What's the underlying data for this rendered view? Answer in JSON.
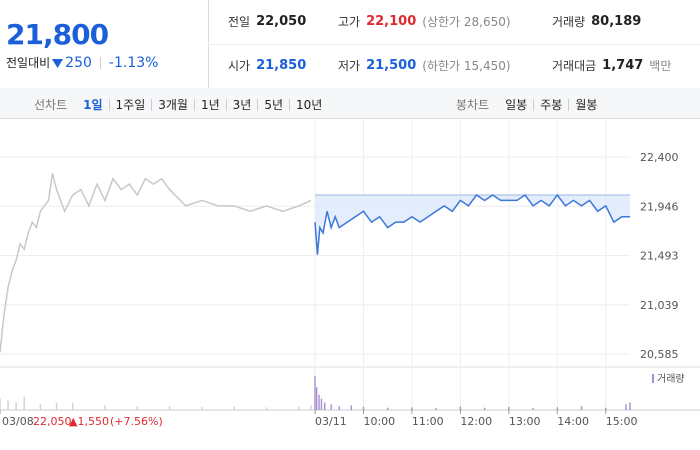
{
  "header": {
    "price": "21,800",
    "change_label": "전일대비",
    "change": "250",
    "change_pct": "-1.13%"
  },
  "stats": [
    {
      "label": "전일",
      "value": "22,050",
      "color": "#222222"
    },
    {
      "label": "고가",
      "value": "22,100",
      "extra": "(상한가 28,650)",
      "color": "#e0282f"
    },
    {
      "label": "거래량",
      "value": "80,189",
      "color": "#222222"
    },
    {
      "label": "시가",
      "value": "21,850",
      "color": "#1b5fd9"
    },
    {
      "label": "저가",
      "value": "21,500",
      "extra": "(하한가 15,450)",
      "color": "#1b5fd9"
    },
    {
      "label": "거래대금",
      "value": "1,747",
      "extra": "백만",
      "color": "#222222"
    }
  ],
  "tabs": {
    "line_label": "선차트",
    "periods": [
      "1일",
      "1주일",
      "3개월",
      "1년",
      "3년",
      "5년",
      "10년"
    ],
    "active": "1일",
    "candle_label": "봉차트",
    "candles": [
      "일봉",
      "주봉",
      "월봉"
    ]
  },
  "chart_data": {
    "type": "line",
    "xlim": [
      -390,
      390
    ],
    "ylim": [
      20484,
      22741
    ],
    "v2lim": [
      0,
      100
    ],
    "xticks": [
      {
        "value": -390,
        "label": "03/08"
      },
      {
        "value": 0,
        "label": "03/11"
      },
      {
        "value": 60,
        "label": "10:00"
      },
      {
        "value": 120,
        "label": "11:00"
      },
      {
        "value": 180,
        "label": "12:00"
      },
      {
        "value": 240,
        "label": "13:00"
      },
      {
        "value": 300,
        "label": "14:00"
      },
      {
        "value": 360,
        "label": "15:00"
      }
    ],
    "yticks": [
      {
        "value": 22400,
        "label": "22,400"
      },
      {
        "value": 21946,
        "label": "21,946"
      },
      {
        "value": 21493,
        "label": "21,493"
      },
      {
        "value": 21039,
        "label": "21,039"
      },
      {
        "value": 20585,
        "label": "20,585"
      }
    ],
    "grid": true,
    "base_value": 22050,
    "series": [
      {
        "color": "#c8c8c8",
        "x": [
          -390,
          -385,
          -380,
          -375,
          -370,
          -365,
          -360,
          -355,
          -350,
          -345,
          -340,
          -335,
          -330,
          -325,
          -320,
          -310,
          -300,
          -290,
          -280,
          -270,
          -260,
          -250,
          -240,
          -230,
          -220,
          -210,
          -200,
          -190,
          -180,
          -160,
          -140,
          -120,
          -100,
          -80,
          -60,
          -40,
          -20,
          -5
        ],
        "values": [
          20600,
          20950,
          21200,
          21350,
          21450,
          21600,
          21550,
          21700,
          21800,
          21750,
          21900,
          21950,
          22000,
          22250,
          22100,
          21900,
          22050,
          22100,
          21950,
          22150,
          22000,
          22200,
          22100,
          22150,
          22050,
          22200,
          22150,
          22200,
          22100,
          21950,
          22000,
          21950,
          21950,
          21900,
          21950,
          21900,
          21950,
          22000
        ]
      },
      {
        "color": "#3a78d8",
        "fill": "#dce9fa",
        "x": [
          0,
          3,
          6,
          10,
          15,
          20,
          25,
          30,
          40,
          50,
          60,
          70,
          80,
          90,
          100,
          110,
          120,
          130,
          140,
          150,
          160,
          170,
          180,
          190,
          200,
          210,
          220,
          230,
          240,
          250,
          260,
          270,
          280,
          290,
          300,
          310,
          320,
          330,
          340,
          350,
          360,
          370,
          380,
          390
        ],
        "values": [
          21800,
          21500,
          21750,
          21700,
          21900,
          21750,
          21850,
          21750,
          21800,
          21850,
          21900,
          21800,
          21850,
          21750,
          21800,
          21800,
          21850,
          21800,
          21850,
          21900,
          21950,
          21900,
          22000,
          21950,
          22050,
          22000,
          22050,
          22000,
          22000,
          22000,
          22050,
          21950,
          22000,
          21950,
          22050,
          21950,
          22000,
          21950,
          22000,
          21900,
          21950,
          21800,
          21850,
          21850
        ]
      }
    ],
    "volume": {
      "label": "거래량",
      "series": [
        {
          "color": "#d0d0d0",
          "x": [
            -390,
            -380,
            -370,
            -360,
            -340,
            -320,
            -300,
            -260,
            -220,
            -180,
            -140,
            -100,
            -60,
            -20,
            -5
          ],
          "values": [
            30,
            25,
            20,
            35,
            15,
            20,
            18,
            12,
            10,
            10,
            8,
            9,
            7,
            8,
            12
          ]
        },
        {
          "color": "#a58fd0",
          "x": [
            0,
            2,
            5,
            8,
            12,
            20,
            30,
            45,
            60,
            90,
            120,
            150,
            180,
            210,
            240,
            270,
            300,
            330,
            360,
            385,
            390
          ],
          "values": [
            90,
            60,
            40,
            30,
            20,
            15,
            10,
            12,
            8,
            6,
            7,
            5,
            9,
            6,
            8,
            5,
            7,
            10,
            6,
            15,
            20
          ]
        }
      ]
    },
    "prev_close": {
      "price": "22,050",
      "change": "▲1,550",
      "change_pct": "(+7.56%)"
    }
  }
}
